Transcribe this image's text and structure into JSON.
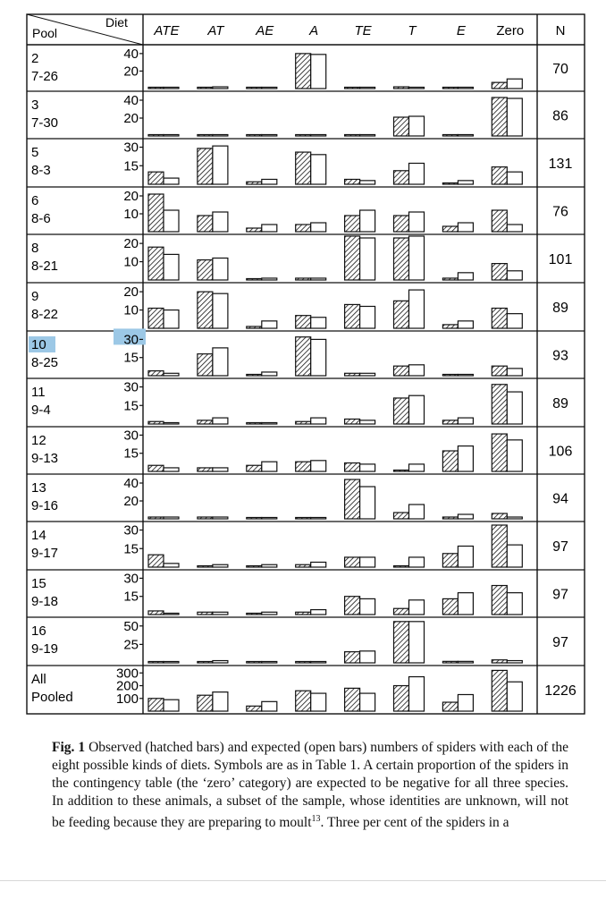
{
  "header": {
    "pool_label": "Pool",
    "diet_label": "Diet",
    "n_label": "N"
  },
  "diets": [
    "ATE",
    "AT",
    "AE",
    "A",
    "TE",
    "T",
    "E",
    "Zero"
  ],
  "highlight_row": 6,
  "chart_data": {
    "type": "bar",
    "bar_kinds": [
      "observed (hatched)",
      "expected (open)"
    ],
    "categories": [
      "ATE",
      "AT",
      "AE",
      "A",
      "TE",
      "T",
      "E",
      "Zero"
    ],
    "panels": [
      {
        "pool": "2",
        "date": "7-26",
        "ticks": [
          "40",
          "20"
        ],
        "tick_values": [
          40,
          20
        ],
        "ymax": 46,
        "n": "70",
        "observed": [
          0,
          1,
          1,
          40,
          0,
          2,
          1,
          7
        ],
        "expected": [
          0,
          2,
          1,
          39,
          0,
          1,
          1,
          11
        ]
      },
      {
        "pool": "3",
        "date": "7-30",
        "ticks": [
          "40",
          "20"
        ],
        "tick_values": [
          40,
          20
        ],
        "ymax": 46,
        "n": "86",
        "observed": [
          0,
          1,
          0,
          1,
          1,
          21,
          1,
          43
        ],
        "expected": [
          0,
          1,
          0,
          1,
          1,
          22,
          0,
          42
        ]
      },
      {
        "pool": "5",
        "date": "8-3",
        "ticks": [
          "30",
          "15"
        ],
        "tick_values": [
          30,
          15
        ],
        "ymax": 34,
        "n": "131",
        "observed": [
          10,
          29,
          2,
          26,
          4,
          11,
          0,
          14
        ],
        "expected": [
          5,
          31,
          4,
          24,
          3,
          17,
          3,
          10
        ]
      },
      {
        "pool": "6",
        "date": "8-6",
        "ticks": [
          "20",
          "10"
        ],
        "tick_values": [
          20,
          10
        ],
        "ymax": 23,
        "n": "76",
        "observed": [
          21,
          9,
          2,
          4,
          9,
          9,
          3,
          12
        ],
        "expected": [
          12,
          11,
          4,
          5,
          12,
          11,
          5,
          4
        ]
      },
      {
        "pool": "8",
        "date": "8-21",
        "ticks": [
          "20",
          "10"
        ],
        "tick_values": [
          20,
          10
        ],
        "ymax": 23,
        "n": "101",
        "observed": [
          18,
          11,
          0,
          1,
          24,
          23,
          1,
          9
        ],
        "expected": [
          14,
          12,
          1,
          1,
          23,
          24,
          4,
          5
        ]
      },
      {
        "pool": "9",
        "date": "8-22",
        "ticks": [
          "20",
          "10"
        ],
        "tick_values": [
          20,
          10
        ],
        "ymax": 23,
        "n": "89",
        "observed": [
          11,
          20,
          1,
          7,
          13,
          15,
          2,
          11
        ],
        "expected": [
          10,
          19,
          4,
          6,
          12,
          21,
          4,
          8
        ]
      },
      {
        "pool": "10",
        "date": "8-25",
        "ticks": [
          "30",
          "15"
        ],
        "tick_values": [
          30,
          15
        ],
        "ymax": 34,
        "n": "93",
        "observed": [
          4,
          18,
          1,
          32,
          2,
          8,
          0,
          8
        ],
        "expected": [
          2,
          23,
          3,
          30,
          2,
          9,
          1,
          6
        ]
      },
      {
        "pool": "11",
        "date": "9-4",
        "ticks": [
          "30",
          "15"
        ],
        "tick_values": [
          30,
          15
        ],
        "ymax": 34,
        "n": "89",
        "observed": [
          2,
          3,
          1,
          2,
          4,
          21,
          3,
          32
        ],
        "expected": [
          1,
          5,
          1,
          5,
          3,
          23,
          5,
          26
        ]
      },
      {
        "pool": "12",
        "date": "9-13",
        "ticks": [
          "30",
          "15"
        ],
        "tick_values": [
          30,
          15
        ],
        "ymax": 34,
        "n": "106",
        "observed": [
          5,
          3,
          5,
          8,
          7,
          1,
          17,
          31
        ],
        "expected": [
          3,
          3,
          8,
          9,
          6,
          6,
          21,
          26
        ]
      },
      {
        "pool": "13",
        "date": "9-16",
        "ticks": [
          "40",
          "20"
        ],
        "tick_values": [
          40,
          20
        ],
        "ymax": 46,
        "n": "94",
        "observed": [
          2,
          2,
          1,
          1,
          44,
          7,
          2,
          6
        ],
        "expected": [
          2,
          2,
          1,
          1,
          36,
          16,
          5,
          2
        ]
      },
      {
        "pool": "14",
        "date": "9-17",
        "ticks": [
          "30",
          "15"
        ],
        "tick_values": [
          30,
          15
        ],
        "ymax": 34,
        "n": "97",
        "observed": [
          10,
          1,
          1,
          2,
          8,
          1,
          11,
          34
        ],
        "expected": [
          3,
          2,
          2,
          4,
          8,
          8,
          17,
          18
        ]
      },
      {
        "pool": "15",
        "date": "9-18",
        "ticks": [
          "30",
          "15"
        ],
        "tick_values": [
          30,
          15
        ],
        "ymax": 34,
        "n": "97",
        "observed": [
          3,
          2,
          1,
          2,
          15,
          5,
          13,
          24
        ],
        "expected": [
          1,
          2,
          2,
          4,
          13,
          12,
          18,
          18
        ]
      },
      {
        "pool": "16",
        "date": "9-19",
        "ticks": [
          "50",
          "25"
        ],
        "tick_values": [
          50,
          25
        ],
        "ymax": 57,
        "n": "97",
        "observed": [
          1,
          1,
          0,
          1,
          15,
          56,
          2,
          4
        ],
        "expected": [
          1,
          3,
          0,
          1,
          16,
          56,
          2,
          3
        ]
      },
      {
        "pool": "All",
        "date": "Pooled",
        "ticks": [
          "300",
          "200",
          "100"
        ],
        "tick_values": [
          300,
          200,
          100
        ],
        "ymax": 330,
        "n": "1226",
        "observed": [
          100,
          125,
          40,
          160,
          180,
          200,
          70,
          320
        ],
        "expected": [
          90,
          150,
          75,
          140,
          140,
          270,
          130,
          230
        ]
      }
    ]
  },
  "caption": {
    "lead": "Fig. 1",
    "text": "Observed (hatched bars) and expected (open bars) numbers of spiders with each of the eight possible kinds of diets. Symbols are as in Table 1. A certain proportion of the spiders in the contingency table (the ‘zero’ category) are expected to be negative for all three species. In addition to these animals, a subset of the sample, whose identities are unknown, will not be feeding because they are preparing to moult",
    "ref": "13",
    "tail": ". Three per cent of the spiders in a"
  }
}
